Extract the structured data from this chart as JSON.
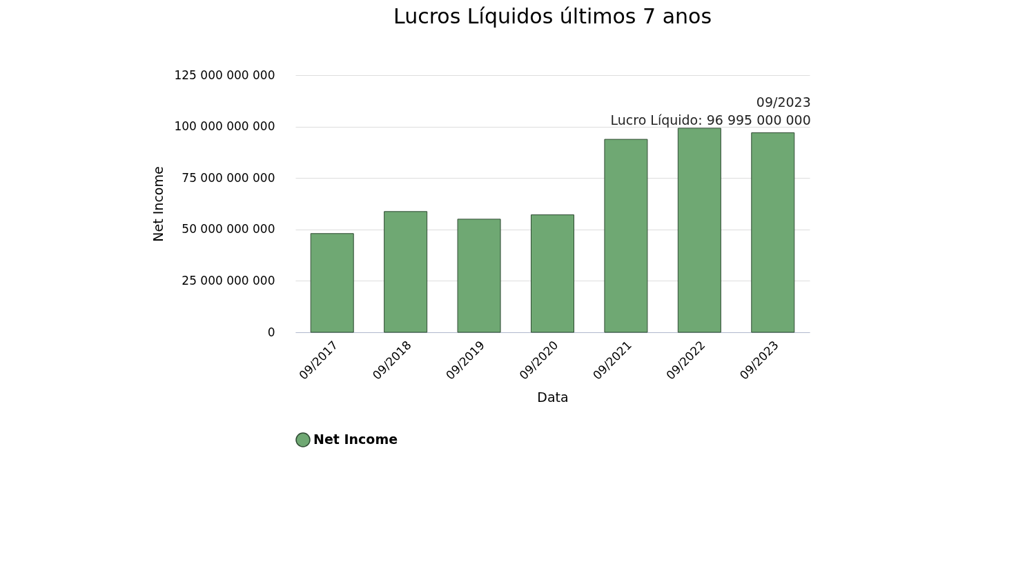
{
  "chart_data": {
    "type": "bar",
    "title": "Lucros Líquidos últimos 7 anos",
    "xlabel": "Data",
    "ylabel": "Net Income",
    "categories": [
      "09/2017",
      "09/2018",
      "09/2019",
      "09/2020",
      "09/2021",
      "09/2022",
      "09/2023"
    ],
    "series": [
      {
        "name": "Net Income",
        "color": "#6fa873",
        "values": [
          48000000000,
          58700000000,
          55000000000,
          57100000000,
          93800000000,
          99200000000,
          96995000000
        ]
      }
    ],
    "ylim": [
      0,
      125000000000
    ],
    "yticks": [
      {
        "value": 0,
        "label": "0"
      },
      {
        "value": 25000000000,
        "label": "25 000 000 000"
      },
      {
        "value": 50000000000,
        "label": "50 000 000 000"
      },
      {
        "value": 75000000000,
        "label": "75 000 000 000"
      },
      {
        "value": 100000000000,
        "label": "100 000 000 000"
      },
      {
        "value": 125000000000,
        "label": "125 000 000 000"
      }
    ],
    "annotations": [
      {
        "text": "09/2023\nLucro Líquido: 96 995 000 000",
        "x": "09/2023",
        "y": 96995000000
      }
    ],
    "grid": "y",
    "legend": "bottom"
  }
}
